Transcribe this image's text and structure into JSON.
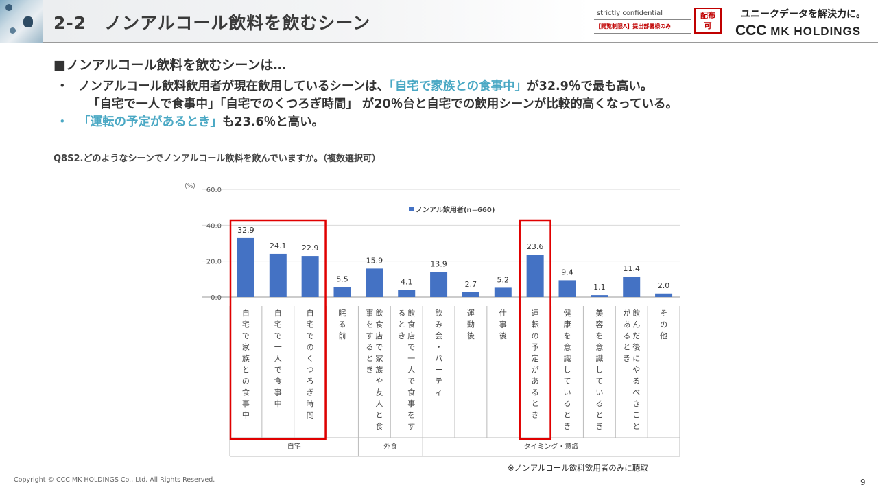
{
  "header": {
    "title": "2-2　ノンアルコール飲料を飲むシーン",
    "confidential": "strictly confidential",
    "restricted": "【閲覧制限A】提出部署様のみ",
    "stamp_line1": "配布",
    "stamp_line2": "可",
    "tagline": "ユニークデータを解決力に。",
    "logo_ccc": "CCC",
    "logo_rest": " MK HOLDINGS"
  },
  "content": {
    "heading": "■ノンアルコール飲料を飲むシーンは…",
    "bullet_marker": "・",
    "bullet1_a": "ノンアルコール飲料飲用者が現在飲用しているシーンは、",
    "bullet1_b": "「自宅で家族との食事中」",
    "bullet1_c": "が32.9％で最も高い。",
    "bullet1_line2": "「自宅で一人で食事中」「自宅でのくつろぎ時間」 が20％台と自宅での飲用シーンが比較的高くなっている。",
    "bullet2_a": "「運転の予定があるとき」",
    "bullet2_b": "も23.6％と高い。",
    "question": "Q8S2.どのようなシーンでノンアルコール飲料を飲んでいますか。（複数選択可）"
  },
  "chart_data": {
    "type": "bar",
    "unit_label": "（%）",
    "ylim": [
      0,
      60
    ],
    "yticks": [
      "0.0",
      "20.0",
      "40.0",
      "60.0"
    ],
    "legend": "ノンアル飲用者(n=660)",
    "categories": [
      "自宅で家族との食事中",
      "自宅で一人で食事中",
      "自宅でのくつろぎ時間",
      "眠る前",
      "飲食店で家族や友人と食事をするとき",
      "飲食店で一人で食事をするとき",
      "飲み会・パーティ",
      "運動後",
      "仕事後",
      "運転の予定があるとき",
      "健康を意識しているとき",
      "美容を意識しているとき",
      "飲んだ後にやるべきことがあるとき",
      "その他"
    ],
    "values": [
      32.9,
      24.1,
      22.9,
      5.5,
      15.9,
      4.1,
      13.9,
      2.7,
      5.2,
      23.6,
      9.4,
      1.1,
      11.4,
      2.0
    ],
    "value_labels": [
      "32.9",
      "24.1",
      "22.9",
      "5.5",
      "15.9",
      "4.1",
      "13.9",
      "2.7",
      "5.2",
      "23.6",
      "9.4",
      "1.1",
      "11.4",
      "2.0"
    ],
    "groups": [
      {
        "label": "自宅",
        "from": 0,
        "to": 3
      },
      {
        "label": "外食",
        "from": 4,
        "to": 5
      },
      {
        "label": "タイミング・意識",
        "from": 6,
        "to": 13
      }
    ],
    "highlighted": [
      [
        0,
        2
      ],
      [
        9,
        9
      ]
    ],
    "bar_color": "#4472c4",
    "highlight_color": "#e00000"
  },
  "footer": {
    "note": "※ノンアルコール飲料飲用者のみに聴取",
    "copyright": "Copyright © CCC MK HOLDINGS Co., Ltd. All Rights Reserved.",
    "page": "9"
  }
}
